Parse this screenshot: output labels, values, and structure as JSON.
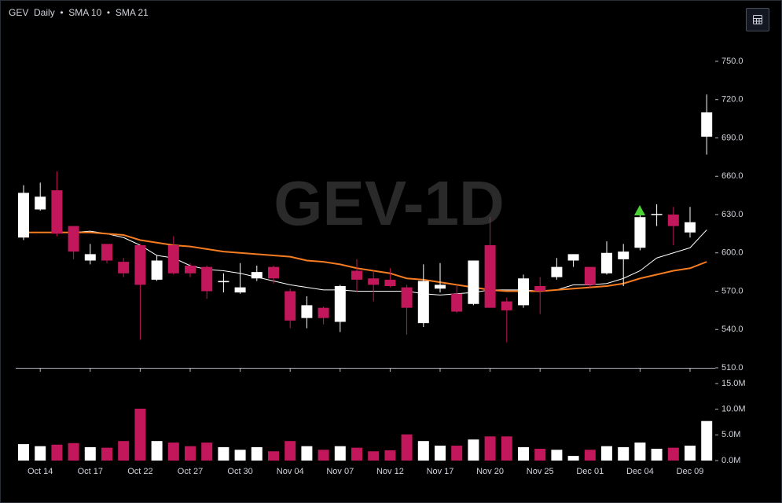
{
  "chart_data": {
    "type": "candlestick",
    "symbol": "GEV",
    "interval": "Daily",
    "watermark": "GEV-1D",
    "categories": [
      null,
      "Oct 14",
      null,
      null,
      "Oct 17",
      null,
      null,
      "Oct 22",
      null,
      null,
      "Oct 27",
      null,
      null,
      "Oct 30",
      null,
      null,
      "Nov 04",
      null,
      null,
      "Nov 07",
      null,
      null,
      "Nov 12",
      null,
      null,
      "Nov 17",
      null,
      null,
      "Nov 20",
      null,
      null,
      "Nov 25",
      null,
      null,
      "Dec 01",
      null,
      null,
      "Dec 04",
      null,
      null,
      "Dec 09",
      null
    ],
    "open": [
      612,
      634,
      649,
      621,
      594,
      607,
      593,
      606,
      579,
      606,
      590,
      589,
      577,
      569,
      580,
      589,
      570,
      549,
      557,
      546,
      586,
      580,
      579,
      573,
      545,
      572,
      568,
      560,
      606,
      562,
      559,
      574,
      581,
      594,
      589,
      584,
      595,
      604,
      630,
      630,
      616,
      691
    ],
    "high": [
      653,
      655,
      664,
      621,
      607,
      607,
      596,
      607,
      598,
      613,
      592,
      590,
      584,
      592,
      590,
      590,
      572,
      566,
      558,
      575,
      595,
      586,
      588,
      575,
      591,
      592,
      575,
      594,
      628,
      565,
      583,
      581,
      596,
      599,
      589,
      609,
      607,
      631,
      638,
      636,
      636,
      724
    ],
    "low": [
      610,
      633,
      613,
      595,
      591,
      592,
      581,
      532,
      578,
      583,
      581,
      564,
      569,
      568,
      578,
      576,
      541,
      541,
      544,
      538,
      569,
      562,
      573,
      536,
      542,
      569,
      553,
      559,
      557,
      530,
      557,
      552,
      579,
      589,
      573,
      583,
      574,
      602,
      621,
      606,
      612,
      677
    ],
    "close": [
      647,
      644,
      615,
      601,
      599,
      594,
      584,
      575,
      594,
      584,
      584,
      570,
      578,
      573,
      585,
      580,
      547,
      559,
      549,
      574,
      579,
      575,
      574,
      557,
      578,
      575,
      554,
      594,
      557,
      555,
      580,
      570,
      589,
      599,
      575,
      600,
      601,
      628,
      630.5,
      621,
      624,
      710
    ],
    "up_color": "#ffffff",
    "down_color": "#c2185b",
    "series": [
      {
        "name": "SMA 10",
        "color": "#ffffff",
        "values": [
          616,
          616,
          616,
          616,
          617,
          615,
          612,
          606,
          598,
          596,
          590,
          587,
          586,
          584,
          581,
          578,
          575,
          573,
          571,
          571,
          570,
          570,
          570,
          570,
          568,
          567,
          568,
          569,
          571,
          571,
          571,
          570,
          571,
          575,
          575,
          576,
          580,
          586,
          596,
          600,
          604,
          618
        ]
      },
      {
        "name": "SMA 21",
        "color": "#f57c20",
        "values": [
          616,
          616,
          616,
          616,
          616,
          615,
          614,
          610,
          608,
          606,
          605,
          603,
          601,
          600,
          599,
          598,
          597,
          594,
          593,
          591,
          588,
          586,
          584,
          580,
          579,
          577,
          575,
          573,
          571,
          570,
          570,
          570,
          571,
          572,
          573,
          574,
          576,
          580,
          583,
          586,
          588,
          593
        ]
      }
    ],
    "ylim": [
      510,
      750
    ],
    "yticks": [
      {
        "value": 510,
        "label": "510.0"
      },
      {
        "value": 540,
        "label": "540.0"
      },
      {
        "value": 570,
        "label": "570.0"
      },
      {
        "value": 600,
        "label": "600.0"
      },
      {
        "value": 630,
        "label": "630.0"
      },
      {
        "value": 660,
        "label": "660.0"
      },
      {
        "value": 690,
        "label": "690.0"
      },
      {
        "value": 720,
        "label": "720.0"
      },
      {
        "value": 750,
        "label": "750.0"
      }
    ],
    "volume": {
      "values": [
        3.2,
        2.8,
        3.1,
        3.4,
        2.6,
        2.5,
        3.8,
        10.1,
        3.8,
        3.5,
        2.8,
        3.5,
        2.6,
        2.1,
        2.6,
        1.8,
        3.8,
        2.8,
        2.1,
        2.8,
        2.5,
        1.8,
        2.0,
        5.1,
        3.8,
        2.9,
        2.9,
        4.1,
        4.7,
        4.7,
        2.6,
        2.3,
        2.1,
        0.9,
        2.1,
        2.8,
        2.6,
        3.5,
        2.3,
        2.5,
        2.9,
        7.7
      ],
      "ylim": [
        0,
        15
      ],
      "yticks": [
        {
          "value": 0,
          "label": "0.0M"
        },
        {
          "value": 5,
          "label": "5.0M"
        },
        {
          "value": 10,
          "label": "10.0M"
        },
        {
          "value": 15,
          "label": "15.0M"
        }
      ]
    }
  }
}
